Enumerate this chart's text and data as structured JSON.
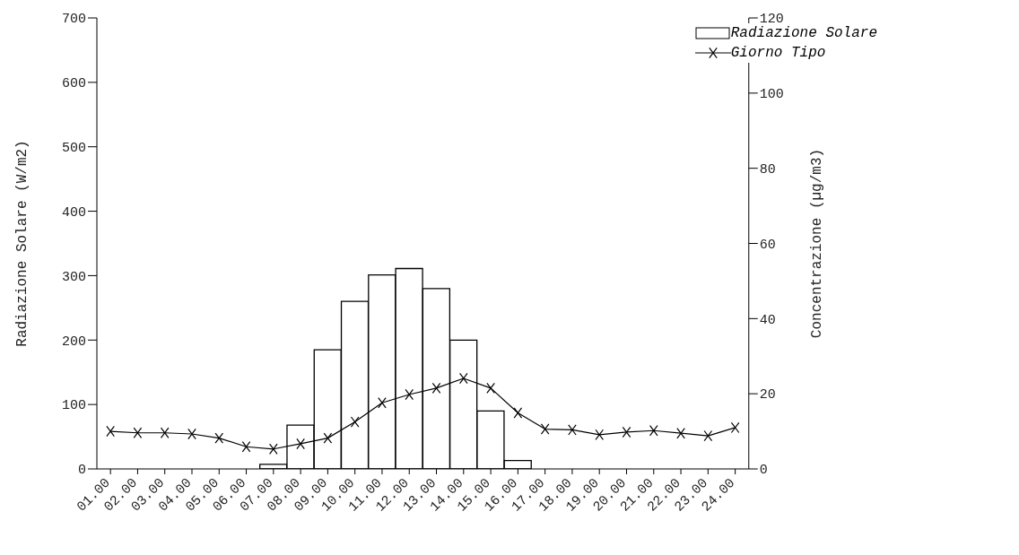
{
  "chart_data": {
    "type": "bar",
    "xlabel": null,
    "ylabel": "Radiazione Solare (W/m2)",
    "y2label": "Concentrazione (µg/m3)",
    "categories": [
      "01.00",
      "02.00",
      "03.00",
      "04.00",
      "05.00",
      "06.00",
      "07.00",
      "08.00",
      "09.00",
      "10.00",
      "11.00",
      "12.00",
      "13.00",
      "14.00",
      "15.00",
      "16.00",
      "17.00",
      "18.00",
      "19.00",
      "20.00",
      "21.00",
      "22.00",
      "23.00",
      "24.00"
    ],
    "series": [
      {
        "name": "Radiazione Solare",
        "color": "#ffffff",
        "values": [
          0,
          0,
          0,
          0,
          0,
          0,
          7,
          68,
          185,
          260,
          301,
          311,
          280,
          200,
          90,
          13,
          0,
          0,
          0,
          0,
          0,
          0,
          0,
          0
        ]
      },
      {
        "name": "Giorno Tipo",
        "type": "line",
        "axis": "y2",
        "color": "#000000",
        "marker": "cross",
        "values": [
          10,
          9.6,
          9.6,
          9.3,
          8.2,
          5.9,
          5.3,
          6.7,
          8.2,
          12.5,
          17.6,
          19.8,
          21.5,
          24.1,
          21.5,
          14.9,
          10.6,
          10.4,
          9.1,
          9.8,
          10.2,
          9.5,
          8.8,
          11
        ]
      }
    ],
    "ylim": [
      0,
      700
    ],
    "yticks": [
      0,
      100,
      200,
      300,
      400,
      500,
      600,
      700
    ],
    "y2lim": [
      0,
      120
    ],
    "y2ticks": [
      0,
      20,
      40,
      60,
      80,
      100,
      120
    ],
    "grid": false,
    "legend": "top right"
  }
}
